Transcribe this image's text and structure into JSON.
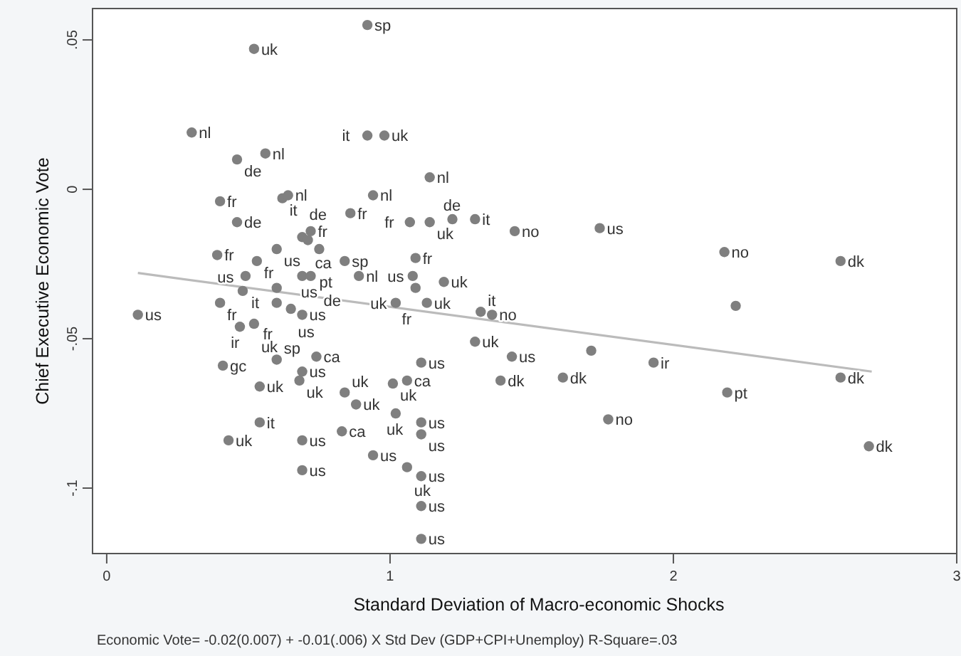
{
  "chart_data": {
    "type": "scatter",
    "xlabel": "Standard Deviation of Macro-economic Shocks",
    "ylabel": "Chief Executive Economic Vote",
    "xlim": [
      -0.05,
      3
    ],
    "ylim": [
      -0.1219,
      0.0605
    ],
    "xticks": [
      0,
      1,
      2,
      3
    ],
    "yticks": [
      {
        "value": 0.05,
        "label": ".05"
      },
      {
        "value": 0,
        "label": "0"
      },
      {
        "value": -0.05,
        "label": "-.05"
      },
      {
        "value": -0.1,
        "label": "-.1"
      }
    ],
    "grid": false,
    "series": [
      {
        "type": "scatter",
        "marker": "circle",
        "color": "#7f7f7f",
        "x": [
          0.92,
          0.52,
          0.3,
          0.92,
          0.98,
          0.46,
          0.56,
          1.14,
          0.4,
          0.62,
          0.64,
          0.94,
          0.86,
          0.46,
          1.07,
          1.14,
          1.22,
          1.3,
          1.44,
          1.74,
          2.18,
          2.59,
          0.72,
          0.69,
          0.71,
          0.39,
          0.53,
          0.6,
          0.75,
          0.84,
          1.09,
          1.08,
          0.89,
          0.49,
          0.69,
          0.72,
          0.6,
          0.48,
          0.4,
          0.6,
          0.65,
          0.69,
          0.11,
          0.47,
          0.52,
          0.6,
          0.74,
          0.41,
          0.69,
          0.68,
          0.54,
          0.84,
          0.88,
          1.01,
          1.06,
          1.11,
          1.02,
          1.11,
          1.11,
          0.54,
          0.43,
          0.69,
          0.83,
          0.94,
          1.06,
          1.11,
          0.69,
          1.11,
          1.11,
          1.19,
          1.13,
          1.02,
          1.09,
          1.32,
          1.36,
          1.3,
          1.43,
          1.71,
          2.22,
          1.93,
          1.39,
          1.61,
          2.19,
          1.77,
          2.59,
          2.69
        ],
        "values": [
          0.055,
          0.047,
          0.019,
          0.018,
          0.018,
          0.01,
          0.012,
          0.004,
          -0.004,
          -0.003,
          -0.002,
          -0.002,
          -0.008,
          -0.011,
          -0.011,
          -0.011,
          -0.01,
          -0.01,
          -0.014,
          -0.013,
          -0.021,
          -0.024,
          -0.014,
          -0.016,
          -0.017,
          -0.022,
          -0.024,
          -0.02,
          -0.02,
          -0.024,
          -0.023,
          -0.029,
          -0.029,
          -0.029,
          -0.029,
          -0.029,
          -0.033,
          -0.034,
          -0.038,
          -0.038,
          -0.04,
          -0.042,
          -0.042,
          -0.046,
          -0.045,
          -0.057,
          -0.056,
          -0.059,
          -0.061,
          -0.064,
          -0.066,
          -0.068,
          -0.072,
          -0.065,
          -0.064,
          -0.058,
          -0.075,
          -0.078,
          -0.082,
          -0.078,
          -0.084,
          -0.084,
          -0.081,
          -0.089,
          -0.093,
          -0.096,
          -0.094,
          -0.106,
          -0.117,
          -0.031,
          -0.038,
          -0.038,
          -0.033,
          -0.041,
          -0.042,
          -0.051,
          -0.056,
          -0.054,
          -0.039,
          -0.058,
          -0.064,
          -0.063,
          -0.068,
          -0.077,
          -0.063,
          -0.086
        ]
      },
      {
        "type": "line",
        "color": "#bbbbbb",
        "x": [
          0.11,
          2.7
        ],
        "values": [
          -0.028,
          -0.061
        ]
      }
    ],
    "annotations": [
      {
        "text": "sp",
        "x": 0.92,
        "y": 0.055
      },
      {
        "text": "uk",
        "x": 0.52,
        "y": 0.047
      },
      {
        "text": "nl",
        "x": 0.3,
        "y": 0.019
      },
      {
        "text": "it",
        "x": 0.92,
        "y": 0.018
      },
      {
        "text": "uk",
        "x": 0.98,
        "y": 0.018
      },
      {
        "text": "de",
        "x": 0.46,
        "y": 0.01
      },
      {
        "text": "nl",
        "x": 0.56,
        "y": 0.012
      },
      {
        "text": "nl",
        "x": 1.14,
        "y": 0.004
      },
      {
        "text": "fr",
        "x": 0.4,
        "y": -0.004
      },
      {
        "text": "it",
        "x": 0.62,
        "y": -0.003
      },
      {
        "text": "nl",
        "x": 0.64,
        "y": -0.002
      },
      {
        "text": "nl",
        "x": 0.94,
        "y": -0.002
      },
      {
        "text": "fr",
        "x": 0.86,
        "y": -0.008
      },
      {
        "text": "de",
        "x": 0.46,
        "y": -0.011
      },
      {
        "text": "fr",
        "x": 1.07,
        "y": -0.011
      },
      {
        "text": "uk",
        "x": 1.14,
        "y": -0.011
      },
      {
        "text": "de",
        "x": 1.22,
        "y": -0.01
      },
      {
        "text": "it",
        "x": 1.3,
        "y": -0.01
      },
      {
        "text": "no",
        "x": 1.44,
        "y": -0.014
      },
      {
        "text": "us",
        "x": 1.74,
        "y": -0.013
      },
      {
        "text": "no",
        "x": 2.18,
        "y": -0.021
      },
      {
        "text": "dk",
        "x": 2.59,
        "y": -0.024
      },
      {
        "text": "fr",
        "x": 0.72,
        "y": -0.014
      },
      {
        "text": "de",
        "x": 0.69,
        "y": -0.016
      },
      {
        "text": "ca",
        "x": 0.71,
        "y": -0.017
      },
      {
        "text": "fr",
        "x": 0.39,
        "y": -0.022
      },
      {
        "text": "fr",
        "x": 0.53,
        "y": -0.024
      },
      {
        "text": "us",
        "x": 0.6,
        "y": -0.02
      },
      {
        "text": "us",
        "x": 0.75,
        "y": -0.02
      },
      {
        "text": "sp",
        "x": 0.84,
        "y": -0.024
      },
      {
        "text": "fr",
        "x": 1.09,
        "y": -0.023
      },
      {
        "text": "us",
        "x": 1.08,
        "y": -0.029
      },
      {
        "text": "nl",
        "x": 0.89,
        "y": -0.029
      },
      {
        "text": "pt",
        "x": 0.69,
        "y": -0.029
      },
      {
        "text": "de",
        "x": 0.72,
        "y": -0.029
      },
      {
        "text": "it",
        "x": 0.6,
        "y": -0.033
      },
      {
        "text": "us",
        "x": 0.48,
        "y": -0.034
      },
      {
        "text": "fr",
        "x": 0.4,
        "y": -0.038
      },
      {
        "text": "fr",
        "x": 0.6,
        "y": -0.038
      },
      {
        "text": "us",
        "x": 0.65,
        "y": -0.04
      },
      {
        "text": "us",
        "x": 0.69,
        "y": -0.042
      },
      {
        "text": "us",
        "x": 0.11,
        "y": -0.042
      },
      {
        "text": "ir",
        "x": 0.47,
        "y": -0.046
      },
      {
        "text": "uk",
        "x": 0.52,
        "y": -0.045
      },
      {
        "text": "sp",
        "x": 0.6,
        "y": -0.057
      },
      {
        "text": "ca",
        "x": 0.74,
        "y": -0.056
      },
      {
        "text": "gc",
        "x": 0.41,
        "y": -0.059
      },
      {
        "text": "us",
        "x": 0.69,
        "y": -0.061
      },
      {
        "text": "uk",
        "x": 0.68,
        "y": -0.064
      },
      {
        "text": "uk",
        "x": 0.54,
        "y": -0.066
      },
      {
        "text": "uk",
        "x": 0.84,
        "y": -0.068
      },
      {
        "text": "uk",
        "x": 0.88,
        "y": -0.072
      },
      {
        "text": "uk",
        "x": 1.01,
        "y": -0.065
      },
      {
        "text": "ca",
        "x": 1.06,
        "y": -0.064
      },
      {
        "text": "us",
        "x": 1.11,
        "y": -0.058
      },
      {
        "text": "uk",
        "x": 1.02,
        "y": -0.075
      },
      {
        "text": "us",
        "x": 1.11,
        "y": -0.078
      },
      {
        "text": "us",
        "x": 1.11,
        "y": -0.082
      },
      {
        "text": "it",
        "x": 0.54,
        "y": -0.078
      },
      {
        "text": "uk",
        "x": 0.43,
        "y": -0.084
      },
      {
        "text": "us",
        "x": 0.69,
        "y": -0.084
      },
      {
        "text": "ca",
        "x": 0.83,
        "y": -0.081
      },
      {
        "text": "us",
        "x": 0.94,
        "y": -0.089
      },
      {
        "text": "uk",
        "x": 1.06,
        "y": -0.093
      },
      {
        "text": "us",
        "x": 1.11,
        "y": -0.096
      },
      {
        "text": "us",
        "x": 0.69,
        "y": -0.094
      },
      {
        "text": "us",
        "x": 1.11,
        "y": -0.106
      },
      {
        "text": "us",
        "x": 1.11,
        "y": -0.117
      },
      {
        "text": "uk",
        "x": 1.19,
        "y": -0.031
      },
      {
        "text": "uk",
        "x": 1.13,
        "y": -0.038
      },
      {
        "text": "uk",
        "x": 1.02,
        "y": -0.038
      },
      {
        "text": "fr",
        "x": 1.09,
        "y": -0.033
      },
      {
        "text": "it",
        "x": 1.32,
        "y": -0.041
      },
      {
        "text": "no",
        "x": 1.36,
        "y": -0.042
      },
      {
        "text": "uk",
        "x": 1.3,
        "y": -0.051
      },
      {
        "text": "us",
        "x": 1.43,
        "y": -0.056
      },
      {
        "text": "ir",
        "x": 1.93,
        "y": -0.058
      },
      {
        "text": "dk",
        "x": 1.39,
        "y": -0.064
      },
      {
        "text": "dk",
        "x": 1.61,
        "y": -0.063
      },
      {
        "text": "pt",
        "x": 2.19,
        "y": -0.068
      },
      {
        "text": "no",
        "x": 1.77,
        "y": -0.077
      },
      {
        "text": "dk",
        "x": 2.59,
        "y": -0.063
      },
      {
        "text": "dk",
        "x": 2.69,
        "y": -0.086
      },
      "Economic Vote= -0.02(0.007) + -0.01(.006) X Std Dev (GDP+CPI+Unemploy) R-Square=.03"
    ]
  }
}
